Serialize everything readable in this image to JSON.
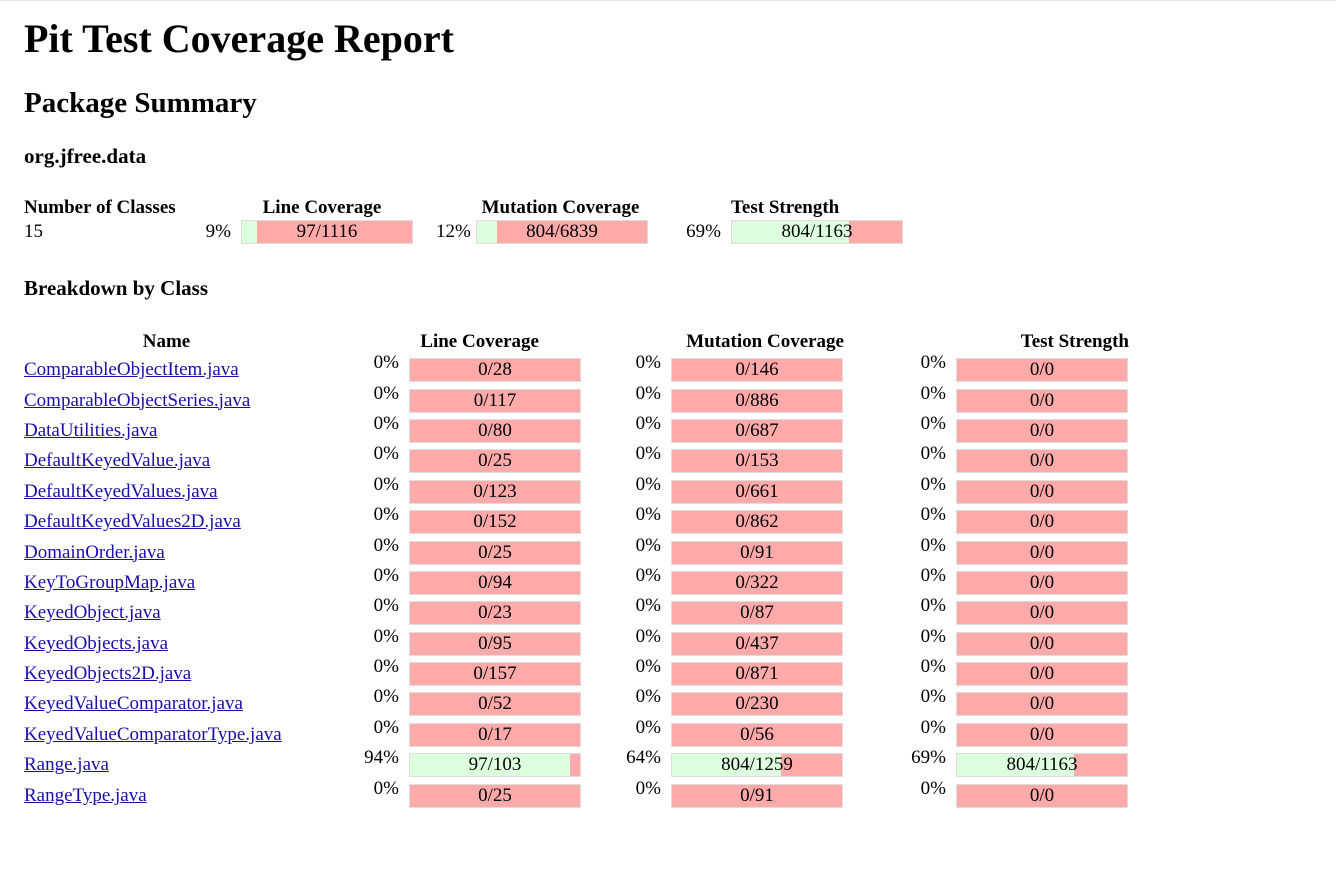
{
  "title": "Pit Test Coverage Report",
  "subtitle": "Package Summary",
  "package_name": "org.jfree.data",
  "summary": {
    "headers": {
      "classes": "Number of Classes",
      "line": "Line Coverage",
      "mutation": "Mutation Coverage",
      "strength": "Test Strength"
    },
    "classes": "15",
    "line": {
      "pct": "9%",
      "label": "97/1116",
      "fraction": 0.09
    },
    "mutation": {
      "pct": "12%",
      "label": "804/6839",
      "fraction": 0.12
    },
    "strength": {
      "pct": "69%",
      "label": "804/1163",
      "fraction": 0.69
    }
  },
  "breakdown_title": "Breakdown by Class",
  "breakdown_headers": {
    "name": "Name",
    "line": "Line Coverage",
    "mutation": "Mutation Coverage",
    "strength": "Test Strength"
  },
  "rows": [
    {
      "name": "ComparableObjectItem.java",
      "line_pct": "0%",
      "line": "0/28",
      "line_f": 0,
      "mut_pct": "0%",
      "mut": "0/146",
      "mut_f": 0,
      "ts_pct": "0%",
      "ts": "0/0",
      "ts_f": 0
    },
    {
      "name": "ComparableObjectSeries.java",
      "line_pct": "0%",
      "line": "0/117",
      "line_f": 0,
      "mut_pct": "0%",
      "mut": "0/886",
      "mut_f": 0,
      "ts_pct": "0%",
      "ts": "0/0",
      "ts_f": 0
    },
    {
      "name": "DataUtilities.java",
      "line_pct": "0%",
      "line": "0/80",
      "line_f": 0,
      "mut_pct": "0%",
      "mut": "0/687",
      "mut_f": 0,
      "ts_pct": "0%",
      "ts": "0/0",
      "ts_f": 0
    },
    {
      "name": "DefaultKeyedValue.java",
      "line_pct": "0%",
      "line": "0/25",
      "line_f": 0,
      "mut_pct": "0%",
      "mut": "0/153",
      "mut_f": 0,
      "ts_pct": "0%",
      "ts": "0/0",
      "ts_f": 0
    },
    {
      "name": "DefaultKeyedValues.java",
      "line_pct": "0%",
      "line": "0/123",
      "line_f": 0,
      "mut_pct": "0%",
      "mut": "0/661",
      "mut_f": 0,
      "ts_pct": "0%",
      "ts": "0/0",
      "ts_f": 0
    },
    {
      "name": "DefaultKeyedValues2D.java",
      "line_pct": "0%",
      "line": "0/152",
      "line_f": 0,
      "mut_pct": "0%",
      "mut": "0/862",
      "mut_f": 0,
      "ts_pct": "0%",
      "ts": "0/0",
      "ts_f": 0
    },
    {
      "name": "DomainOrder.java",
      "line_pct": "0%",
      "line": "0/25",
      "line_f": 0,
      "mut_pct": "0%",
      "mut": "0/91",
      "mut_f": 0,
      "ts_pct": "0%",
      "ts": "0/0",
      "ts_f": 0
    },
    {
      "name": "KeyToGroupMap.java",
      "line_pct": "0%",
      "line": "0/94",
      "line_f": 0,
      "mut_pct": "0%",
      "mut": "0/322",
      "mut_f": 0,
      "ts_pct": "0%",
      "ts": "0/0",
      "ts_f": 0
    },
    {
      "name": "KeyedObject.java",
      "line_pct": "0%",
      "line": "0/23",
      "line_f": 0,
      "mut_pct": "0%",
      "mut": "0/87",
      "mut_f": 0,
      "ts_pct": "0%",
      "ts": "0/0",
      "ts_f": 0
    },
    {
      "name": "KeyedObjects.java",
      "line_pct": "0%",
      "line": "0/95",
      "line_f": 0,
      "mut_pct": "0%",
      "mut": "0/437",
      "mut_f": 0,
      "ts_pct": "0%",
      "ts": "0/0",
      "ts_f": 0
    },
    {
      "name": "KeyedObjects2D.java",
      "line_pct": "0%",
      "line": "0/157",
      "line_f": 0,
      "mut_pct": "0%",
      "mut": "0/871",
      "mut_f": 0,
      "ts_pct": "0%",
      "ts": "0/0",
      "ts_f": 0
    },
    {
      "name": "KeyedValueComparator.java",
      "line_pct": "0%",
      "line": "0/52",
      "line_f": 0,
      "mut_pct": "0%",
      "mut": "0/230",
      "mut_f": 0,
      "ts_pct": "0%",
      "ts": "0/0",
      "ts_f": 0
    },
    {
      "name": "KeyedValueComparatorType.java",
      "line_pct": "0%",
      "line": "0/17",
      "line_f": 0,
      "mut_pct": "0%",
      "mut": "0/56",
      "mut_f": 0,
      "ts_pct": "0%",
      "ts": "0/0",
      "ts_f": 0
    },
    {
      "name": "Range.java",
      "line_pct": "94%",
      "line": "97/103",
      "line_f": 0.94,
      "mut_pct": "64%",
      "mut": "804/1259",
      "mut_f": 0.64,
      "ts_pct": "69%",
      "ts": "804/1163",
      "ts_f": 0.69
    },
    {
      "name": "RangeType.java",
      "line_pct": "0%",
      "line": "0/25",
      "line_f": 0,
      "mut_pct": "0%",
      "mut": "0/91",
      "mut_f": 0,
      "ts_pct": "0%",
      "ts": "0/0",
      "ts_f": 0
    }
  ],
  "colors": {
    "covered": "#ddffdd",
    "uncovered": "#ffaaaa",
    "link": "#1a0dab"
  }
}
